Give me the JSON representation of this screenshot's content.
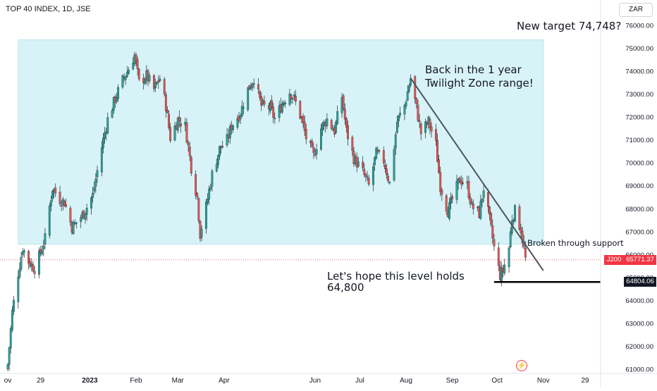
{
  "header": {
    "symbol_line": "TOP 40 INDEX, 1D, JSE",
    "currency": "ZAR"
  },
  "chart_data": {
    "type": "candlestick",
    "title": "TOP 40 INDEX, 1D, JSE",
    "ylim": [
      61000,
      76000
    ],
    "yticks": [
      61000,
      62000,
      63000,
      64000,
      65000,
      66000,
      67000,
      68000,
      69000,
      70000,
      71000,
      72000,
      73000,
      74000,
      75000,
      76000
    ],
    "ytick_labels": [
      "61000.00",
      "62000.00",
      "63000.00",
      "64000.00",
      "65000.00",
      "66000.00",
      "67000.00",
      "68000.00",
      "69000.00",
      "70000.00",
      "71000.00",
      "72000.00",
      "73000.00",
      "74000.00",
      "75000.00",
      "76000.00"
    ],
    "xtick_labels": [
      "ov",
      "29",
      "2023",
      "Feb",
      "Mar",
      "Apr",
      "Jun",
      "Jul",
      "Aug",
      "Sep",
      "Oct",
      "Nov",
      "29"
    ],
    "xtick_dates": [
      "2022-11-07",
      "2022-11-29",
      "2023-01-01",
      "2023-02-01",
      "2023-03-01",
      "2023-04-01",
      "2023-06-01",
      "2023-07-01",
      "2023-08-01",
      "2023-09-01",
      "2023-10-01",
      "2023-11-01",
      "2023-11-29"
    ],
    "colors": {
      "up": "#26a69a",
      "down": "#ef5350",
      "zone": "#d8f3f7",
      "text": "#131722",
      "price": "#f23645"
    },
    "path": [
      [
        "2022-11-07",
        61200
      ],
      [
        "2022-11-10",
        63500
      ],
      [
        "2022-11-14",
        65200
      ],
      [
        "2022-11-17",
        66300
      ],
      [
        "2022-11-21",
        65700
      ],
      [
        "2022-11-25",
        65400
      ],
      [
        "2022-11-29",
        66100
      ],
      [
        "2022-12-02",
        66700
      ],
      [
        "2022-12-05",
        68100
      ],
      [
        "2022-12-07",
        68900
      ],
      [
        "2022-12-12",
        68400
      ],
      [
        "2022-12-15",
        68300
      ],
      [
        "2022-12-20",
        67200
      ],
      [
        "2022-12-23",
        67400
      ],
      [
        "2022-12-28",
        67800
      ],
      [
        "2023-01-03",
        68600
      ],
      [
        "2023-01-09",
        70700
      ],
      [
        "2023-01-13",
        71900
      ],
      [
        "2023-01-18",
        72800
      ],
      [
        "2023-01-23",
        73600
      ],
      [
        "2023-01-27",
        74100
      ],
      [
        "2023-01-31",
        74700
      ],
      [
        "2023-02-03",
        73500
      ],
      [
        "2023-02-08",
        73800
      ],
      [
        "2023-02-13",
        73200
      ],
      [
        "2023-02-17",
        73700
      ],
      [
        "2023-02-21",
        72500
      ],
      [
        "2023-02-24",
        71100
      ],
      [
        "2023-03-01",
        71900
      ],
      [
        "2023-03-06",
        71600
      ],
      [
        "2023-03-10",
        69800
      ],
      [
        "2023-03-14",
        68500
      ],
      [
        "2023-03-16",
        66900
      ],
      [
        "2023-03-20",
        68100
      ],
      [
        "2023-03-24",
        69500
      ],
      [
        "2023-03-29",
        70600
      ],
      [
        "2023-04-03",
        71000
      ],
      [
        "2023-04-06",
        71600
      ],
      [
        "2023-04-12",
        72200
      ],
      [
        "2023-04-17",
        73200
      ],
      [
        "2023-04-21",
        73700
      ],
      [
        "2023-04-26",
        72500
      ],
      [
        "2023-05-02",
        72400
      ],
      [
        "2023-05-05",
        71900
      ],
      [
        "2023-05-10",
        72600
      ],
      [
        "2023-05-15",
        73100
      ],
      [
        "2023-05-18",
        72800
      ],
      [
        "2023-05-23",
        71900
      ],
      [
        "2023-05-26",
        71100
      ],
      [
        "2023-05-31",
        70300
      ],
      [
        "2023-06-05",
        71500
      ],
      [
        "2023-06-09",
        71900
      ],
      [
        "2023-06-14",
        71400
      ],
      [
        "2023-06-19",
        72900
      ],
      [
        "2023-06-22",
        71400
      ],
      [
        "2023-06-27",
        70200
      ],
      [
        "2023-07-03",
        69600
      ],
      [
        "2023-07-07",
        69000
      ],
      [
        "2023-07-12",
        70400
      ],
      [
        "2023-07-17",
        70100
      ],
      [
        "2023-07-21",
        69100
      ],
      [
        "2023-07-26",
        71800
      ],
      [
        "2023-07-31",
        72500
      ],
      [
        "2023-08-04",
        73700
      ],
      [
        "2023-08-08",
        72400
      ],
      [
        "2023-08-11",
        71300
      ],
      [
        "2023-08-16",
        71800
      ],
      [
        "2023-08-21",
        70800
      ],
      [
        "2023-08-24",
        69000
      ],
      [
        "2023-08-29",
        67900
      ],
      [
        "2023-09-01",
        68400
      ],
      [
        "2023-09-06",
        69300
      ],
      [
        "2023-09-11",
        69000
      ],
      [
        "2023-09-14",
        68100
      ],
      [
        "2023-09-19",
        67800
      ],
      [
        "2023-09-22",
        68900
      ],
      [
        "2023-09-26",
        67500
      ],
      [
        "2023-09-29",
        66300
      ],
      [
        "2023-10-03",
        65100
      ],
      [
        "2023-10-05",
        65300
      ],
      [
        "2023-10-09",
        66300
      ],
      [
        "2023-10-11",
        67600
      ],
      [
        "2023-10-13",
        67900
      ],
      [
        "2023-10-17",
        67100
      ],
      [
        "2023-10-20",
        65800
      ]
    ],
    "annotations": {
      "target": "New target 74,748?",
      "range": [
        "Back in the 1 year",
        "Twilight Zone range!"
      ],
      "broken": "Broken through support",
      "hope": [
        "Let's hope this level holds",
        "64,800"
      ]
    },
    "range_zone": {
      "x_from": "2022-11-14",
      "x_to": "2023-11-01",
      "y_from": 66450,
      "y_to": 75370
    },
    "trendline": {
      "from": [
        "2023-08-04",
        73700
      ],
      "to": [
        "2023-11-01",
        65300
      ]
    },
    "support_line": {
      "from": [
        "2023-09-29",
        64804.06
      ],
      "to": [
        "2023-12-31",
        64804.06
      ]
    },
    "last_price": {
      "symbol": "J200",
      "value": "65771.37",
      "y": 65771.37
    },
    "support_label": {
      "value": "64804.06",
      "y": 64804.06
    }
  }
}
